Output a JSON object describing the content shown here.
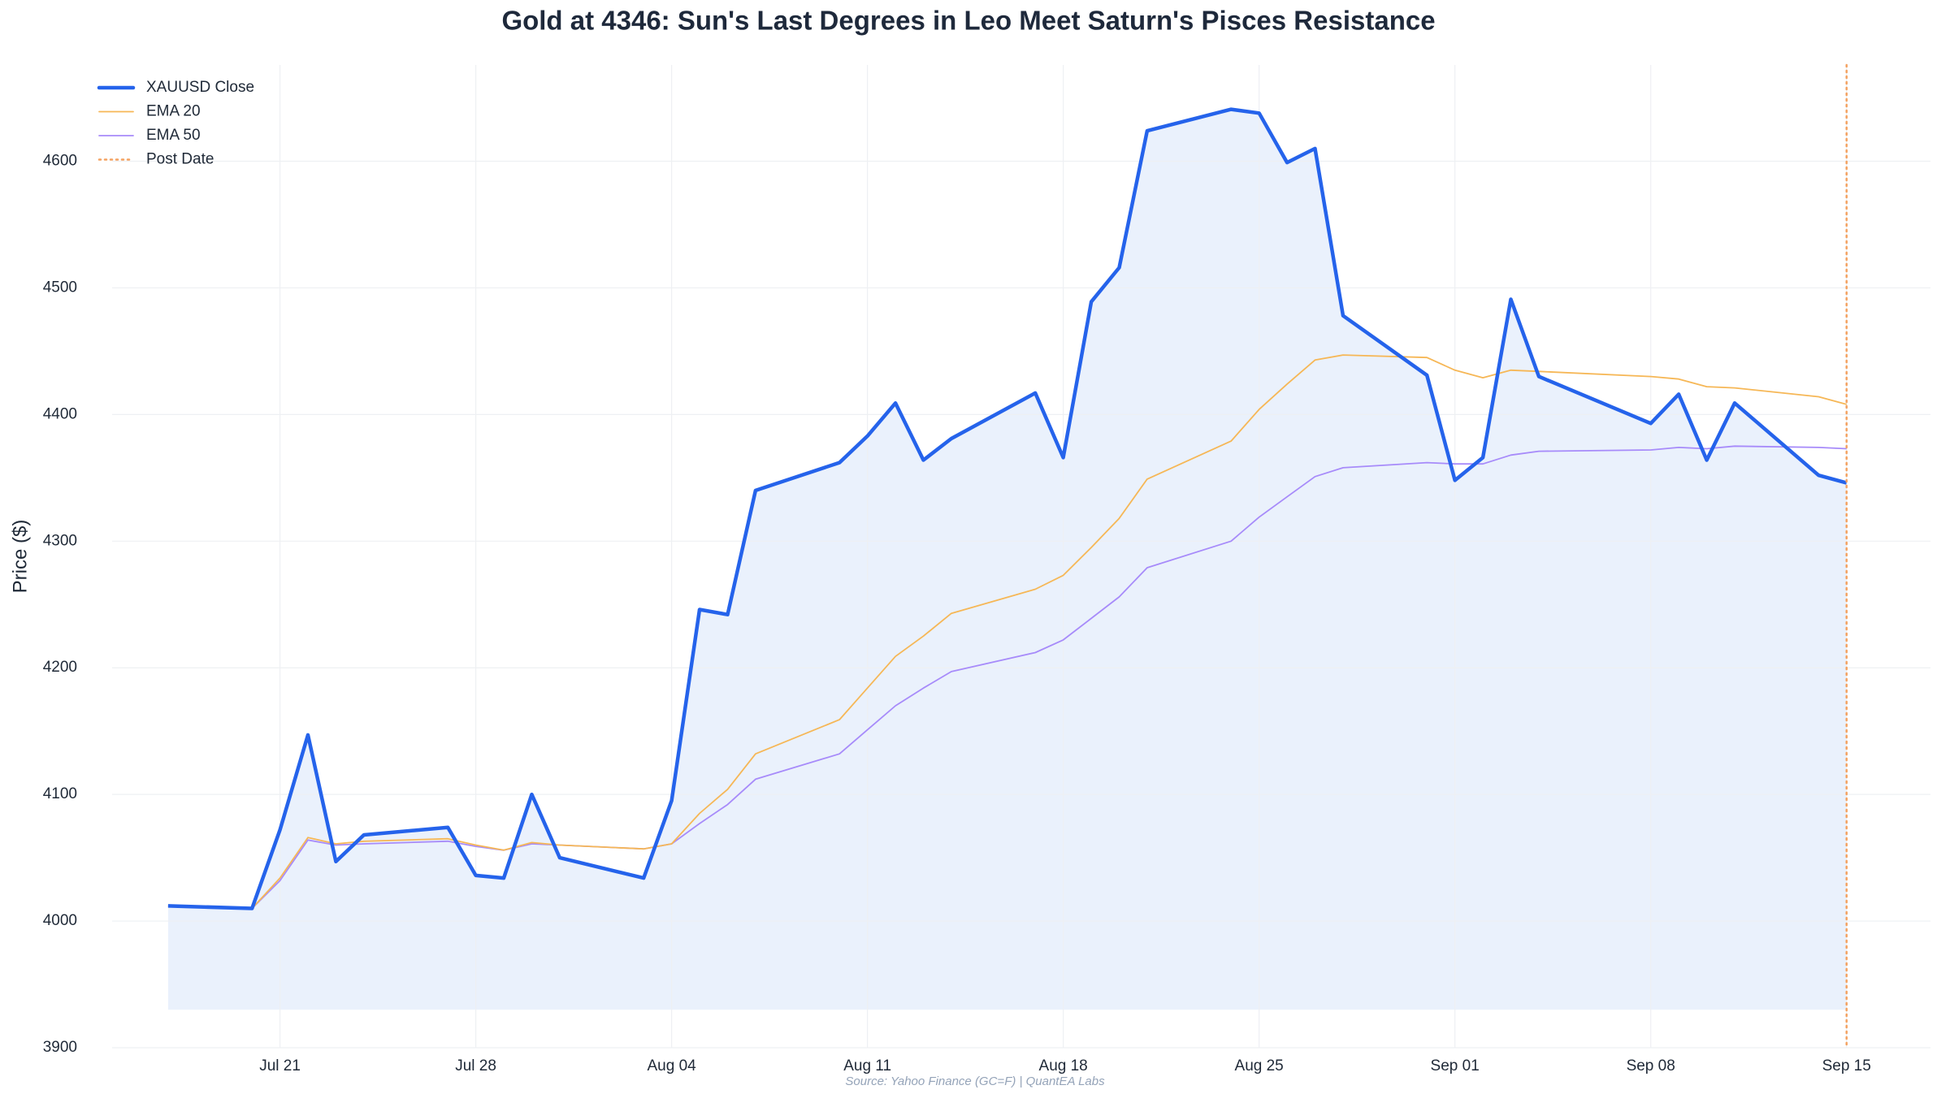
{
  "chart_data": {
    "type": "line",
    "title": "Gold at 4346: Sun's Last Degrees in Leo Meet Saturn's Pisces Resistance",
    "y_label": "Price ($)",
    "source": "Source: Yahoo Finance (GC=F) | QuantEA Labs",
    "x": [
      "Jul 17",
      "Jul 20",
      "Jul 21",
      "Jul 22",
      "Jul 23",
      "Jul 24",
      "Jul 27",
      "Jul 28",
      "Jul 29",
      "Jul 30",
      "Jul 31",
      "Aug 03",
      "Aug 04",
      "Aug 05",
      "Aug 06",
      "Aug 07",
      "Aug 10",
      "Aug 11",
      "Aug 12",
      "Aug 13",
      "Aug 14",
      "Aug 17",
      "Aug 18",
      "Aug 19",
      "Aug 20",
      "Aug 21",
      "Aug 24",
      "Aug 25",
      "Aug 26",
      "Aug 27",
      "Aug 28",
      "Aug 31",
      "Sep 01",
      "Sep 02",
      "Sep 03",
      "Sep 04",
      "Sep 08",
      "Sep 09",
      "Sep 10",
      "Sep 11",
      "Sep 14",
      "Sep 15"
    ],
    "series": [
      {
        "name": "XAUUSD Close",
        "color": "#2563eb",
        "width": 4.5,
        "fill": "#eaf1fc",
        "fill_base": 3930,
        "values": [
          4012,
          4010,
          4072,
          4147,
          4047,
          4068,
          4074,
          4036,
          4034,
          4100,
          4050,
          4034,
          4095,
          4246,
          4242,
          4340,
          4362,
          4383,
          4409,
          4364,
          4381,
          4417,
          4366,
          4489,
          4516,
          4624,
          4641,
          4638,
          4599,
          4610,
          4478,
          4431,
          4348,
          4366,
          4491,
          4430,
          4393,
          4416,
          4364,
          4409,
          4352,
          4346
        ]
      },
      {
        "name": "EMA 20",
        "color": "#f6b756",
        "width": 1.8,
        "values": [
          4012,
          4010,
          4034,
          4066,
          4061,
          4063,
          4065,
          4060,
          4056,
          4062,
          4060,
          4057,
          4061,
          4085,
          4104,
          4132,
          4159,
          4184,
          4209,
          4225,
          4243,
          4262,
          4273,
          4295,
          4318,
          4349,
          4379,
          4404,
          4424,
          4443,
          4447,
          4445,
          4435,
          4429,
          4435,
          4434,
          4430,
          4428,
          4422,
          4421,
          4414,
          4408
        ]
      },
      {
        "name": "EMA 50",
        "color": "#a78bfa",
        "width": 1.8,
        "values": [
          4012,
          4010,
          4032,
          4064,
          4060,
          4061,
          4063,
          4059,
          4056,
          4061,
          4060,
          4057,
          4061,
          4077,
          4092,
          4112,
          4132,
          4151,
          4170,
          4184,
          4197,
          4212,
          4222,
          4239,
          4256,
          4279,
          4300,
          4319,
          4335,
          4351,
          4358,
          4362,
          4361,
          4361,
          4368,
          4371,
          4372,
          4374,
          4373,
          4375,
          4374,
          4373
        ]
      }
    ],
    "vline": {
      "name": "Post Date",
      "x": "Sep 15",
      "color": "#f4a261"
    },
    "xlim": [
      "Jul 15",
      "Sep 18"
    ],
    "xticks": [
      "Jul 21",
      "Jul 28",
      "Aug 04",
      "Aug 11",
      "Aug 18",
      "Aug 25",
      "Sep 01",
      "Sep 08",
      "Sep 15"
    ],
    "ylim": [
      3900,
      4676
    ],
    "yticks": [
      3900,
      4000,
      4100,
      4200,
      4300,
      4400,
      4500,
      4600
    ],
    "grid": true,
    "legend": "upper left"
  }
}
